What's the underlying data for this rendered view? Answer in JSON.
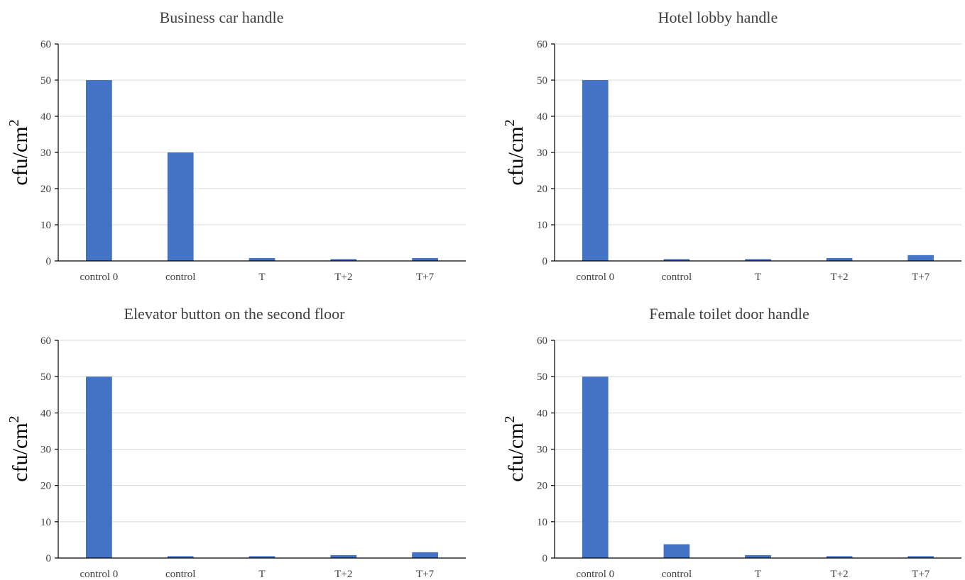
{
  "chart_data": [
    {
      "type": "bar",
      "title": "Business car handle",
      "ylabel": "cfu/cm",
      "ylabel_sup": "2",
      "categories": [
        "control 0",
        "control",
        "T",
        "T+2",
        "T+7"
      ],
      "values": [
        50,
        30,
        0.8,
        0.5,
        0.8
      ],
      "ylim": [
        0,
        60
      ],
      "yticks": [
        "0",
        "10",
        "20",
        "30",
        "40",
        "50",
        "60"
      ],
      "grid": true,
      "bar_color": "#4472c4"
    },
    {
      "type": "bar",
      "title": "Hotel lobby handle",
      "ylabel": "cfu/cm",
      "ylabel_sup": "2",
      "categories": [
        "control 0",
        "control",
        "T",
        "T+2",
        "T+7"
      ],
      "values": [
        50,
        0.5,
        0.5,
        0.8,
        1.6
      ],
      "ylim": [
        0,
        60
      ],
      "yticks": [
        "0",
        "10",
        "20",
        "30",
        "40",
        "50",
        "60"
      ],
      "grid": true,
      "bar_color": "#4472c4"
    },
    {
      "type": "bar",
      "title": "Elevator button on the second floor",
      "ylabel": "cfu/cm",
      "ylabel_sup": "2",
      "categories": [
        "control 0",
        "control",
        "T",
        "T+2",
        "T+7"
      ],
      "values": [
        50,
        0.5,
        0.5,
        0.8,
        1.6
      ],
      "ylim": [
        0,
        60
      ],
      "yticks": [
        "0",
        "10",
        "20",
        "30",
        "40",
        "50",
        "60"
      ],
      "grid": true,
      "bar_color": "#4472c4"
    },
    {
      "type": "bar",
      "title": "Female toilet door handle",
      "ylabel": "cfu/cm",
      "ylabel_sup": "2",
      "categories": [
        "control 0",
        "control",
        "T",
        "T+2",
        "T+7"
      ],
      "values": [
        50,
        3.8,
        0.8,
        0.5,
        0.5
      ],
      "ylim": [
        0,
        60
      ],
      "yticks": [
        "0",
        "10",
        "20",
        "30",
        "40",
        "50",
        "60"
      ],
      "grid": true,
      "bar_color": "#4472c4"
    }
  ]
}
